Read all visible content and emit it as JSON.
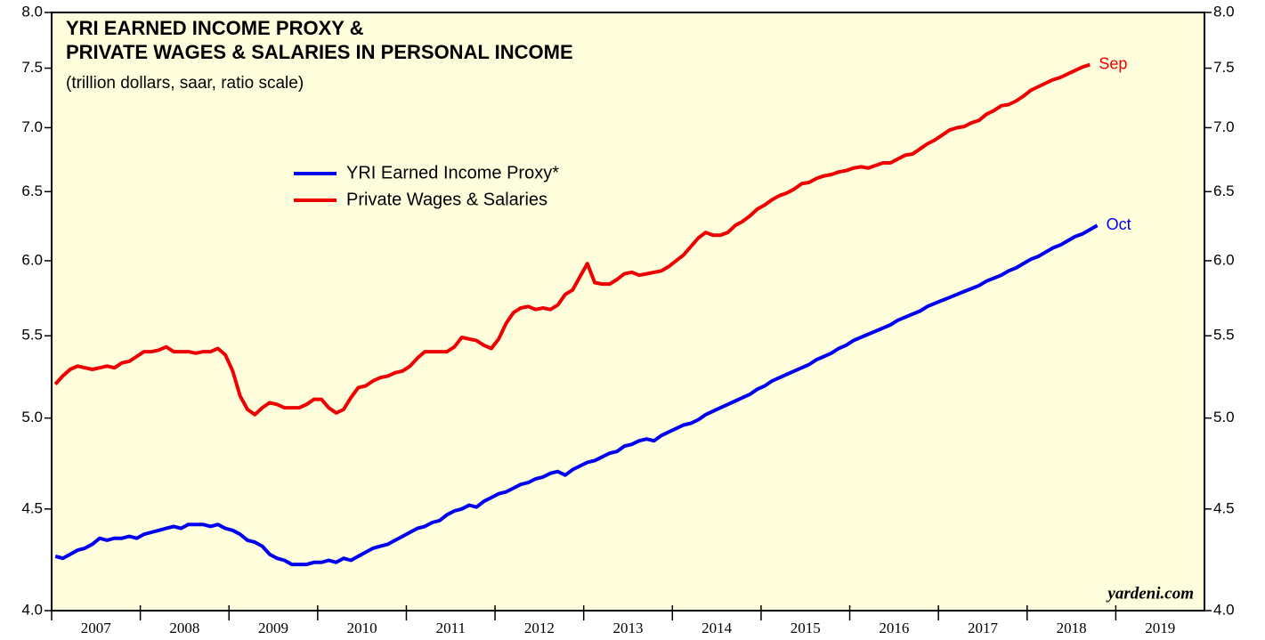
{
  "chart_data": {
    "type": "line",
    "title": "YRI EARNED INCOME PROXY &",
    "title_line2": "PRIVATE WAGES & SALARIES IN PERSONAL INCOME",
    "subtitle": "(trillion dollars, saar, ratio scale)",
    "source": "yardeni.com",
    "log_scale": true,
    "grid": false,
    "legend": "upper-left",
    "categories": [
      "2007",
      "2008",
      "2009",
      "2010",
      "2011",
      "2012",
      "2013",
      "2014",
      "2015",
      "2016",
      "2017",
      "2018",
      "2019"
    ],
    "x": [
      "2007-01",
      "2007-02",
      "2007-03",
      "2007-04",
      "2007-05",
      "2007-06",
      "2007-07",
      "2007-08",
      "2007-09",
      "2007-10",
      "2007-11",
      "2007-12",
      "2008-01",
      "2008-02",
      "2008-03",
      "2008-04",
      "2008-05",
      "2008-06",
      "2008-07",
      "2008-08",
      "2008-09",
      "2008-10",
      "2008-11",
      "2008-12",
      "2009-01",
      "2009-02",
      "2009-03",
      "2009-04",
      "2009-05",
      "2009-06",
      "2009-07",
      "2009-08",
      "2009-09",
      "2009-10",
      "2009-11",
      "2009-12",
      "2010-01",
      "2010-02",
      "2010-03",
      "2010-04",
      "2010-05",
      "2010-06",
      "2010-07",
      "2010-08",
      "2010-09",
      "2010-10",
      "2010-11",
      "2010-12",
      "2011-01",
      "2011-02",
      "2011-03",
      "2011-04",
      "2011-05",
      "2011-06",
      "2011-07",
      "2011-08",
      "2011-09",
      "2011-10",
      "2011-11",
      "2011-12",
      "2012-01",
      "2012-02",
      "2012-03",
      "2012-04",
      "2012-05",
      "2012-06",
      "2012-07",
      "2012-08",
      "2012-09",
      "2012-10",
      "2012-11",
      "2012-12",
      "2013-01",
      "2013-02",
      "2013-03",
      "2013-04",
      "2013-05",
      "2013-06",
      "2013-07",
      "2013-08",
      "2013-09",
      "2013-10",
      "2013-11",
      "2013-12",
      "2014-01",
      "2014-02",
      "2014-03",
      "2014-04",
      "2014-05",
      "2014-06",
      "2014-07",
      "2014-08",
      "2014-09",
      "2014-10",
      "2014-11",
      "2014-12",
      "2015-01",
      "2015-02",
      "2015-03",
      "2015-04",
      "2015-05",
      "2015-06",
      "2015-07",
      "2015-08",
      "2015-09",
      "2015-10",
      "2015-11",
      "2015-12",
      "2016-01",
      "2016-02",
      "2016-03",
      "2016-04",
      "2016-05",
      "2016-06",
      "2016-07",
      "2016-08",
      "2016-09",
      "2016-10",
      "2016-11",
      "2016-12",
      "2017-01",
      "2017-02",
      "2017-03",
      "2017-04",
      "2017-05",
      "2017-06",
      "2017-07",
      "2017-08",
      "2017-09",
      "2017-10",
      "2017-11",
      "2017-12",
      "2018-01",
      "2018-02",
      "2018-03",
      "2018-04",
      "2018-05",
      "2018-06",
      "2018-07",
      "2018-08",
      "2018-09",
      "2018-10"
    ],
    "series": [
      {
        "name": "YRI Earned Income Proxy*",
        "color": "#0000ee",
        "end_label": "Oct",
        "values": [
          4.26,
          4.25,
          4.27,
          4.29,
          4.3,
          4.32,
          4.35,
          4.34,
          4.35,
          4.35,
          4.36,
          4.35,
          4.37,
          4.38,
          4.39,
          4.4,
          4.41,
          4.4,
          4.42,
          4.42,
          4.42,
          4.41,
          4.42,
          4.4,
          4.39,
          4.37,
          4.34,
          4.33,
          4.31,
          4.27,
          4.25,
          4.24,
          4.22,
          4.22,
          4.22,
          4.23,
          4.23,
          4.24,
          4.23,
          4.25,
          4.24,
          4.26,
          4.28,
          4.3,
          4.31,
          4.32,
          4.34,
          4.36,
          4.38,
          4.4,
          4.41,
          4.43,
          4.44,
          4.47,
          4.49,
          4.5,
          4.52,
          4.51,
          4.54,
          4.56,
          4.58,
          4.59,
          4.61,
          4.63,
          4.64,
          4.66,
          4.67,
          4.69,
          4.7,
          4.68,
          4.71,
          4.73,
          4.75,
          4.76,
          4.78,
          4.8,
          4.81,
          4.84,
          4.85,
          4.87,
          4.88,
          4.87,
          4.9,
          4.92,
          4.94,
          4.96,
          4.97,
          4.99,
          5.02,
          5.04,
          5.06,
          5.08,
          5.1,
          5.12,
          5.14,
          5.17,
          5.19,
          5.22,
          5.24,
          5.26,
          5.28,
          5.3,
          5.32,
          5.35,
          5.37,
          5.39,
          5.42,
          5.44,
          5.47,
          5.49,
          5.51,
          5.53,
          5.55,
          5.57,
          5.6,
          5.62,
          5.64,
          5.66,
          5.69,
          5.71,
          5.73,
          5.75,
          5.77,
          5.79,
          5.81,
          5.83,
          5.86,
          5.88,
          5.9,
          5.93,
          5.95,
          5.98,
          6.01,
          6.03,
          6.06,
          6.09,
          6.11,
          6.14,
          6.17,
          6.19,
          6.22,
          6.25
        ]
      },
      {
        "name": "Private Wages & Salaries",
        "color": "#ee0000",
        "end_label": "Sep",
        "values": [
          5.2,
          5.25,
          5.29,
          5.31,
          5.3,
          5.29,
          5.3,
          5.31,
          5.3,
          5.33,
          5.34,
          5.37,
          5.4,
          5.4,
          5.41,
          5.43,
          5.4,
          5.4,
          5.4,
          5.39,
          5.4,
          5.4,
          5.42,
          5.38,
          5.28,
          5.13,
          5.05,
          5.02,
          5.06,
          5.09,
          5.08,
          5.06,
          5.06,
          5.06,
          5.08,
          5.11,
          5.11,
          5.06,
          5.03,
          5.05,
          5.12,
          5.18,
          5.19,
          5.22,
          5.24,
          5.25,
          5.27,
          5.28,
          5.31,
          5.36,
          5.4,
          5.4,
          5.4,
          5.4,
          5.43,
          5.49,
          5.48,
          5.47,
          5.44,
          5.42,
          5.48,
          5.58,
          5.65,
          5.68,
          5.69,
          5.67,
          5.68,
          5.67,
          5.7,
          5.77,
          5.8,
          5.89,
          5.98,
          5.85,
          5.84,
          5.84,
          5.87,
          5.91,
          5.92,
          5.9,
          5.91,
          5.92,
          5.93,
          5.96,
          6.0,
          6.04,
          6.1,
          6.16,
          6.2,
          6.18,
          6.18,
          6.2,
          6.25,
          6.28,
          6.32,
          6.37,
          6.4,
          6.44,
          6.47,
          6.49,
          6.52,
          6.56,
          6.57,
          6.6,
          6.62,
          6.63,
          6.65,
          6.66,
          6.68,
          6.69,
          6.68,
          6.7,
          6.72,
          6.72,
          6.75,
          6.78,
          6.79,
          6.83,
          6.87,
          6.9,
          6.94,
          6.98,
          7.0,
          7.01,
          7.04,
          7.06,
          7.11,
          7.14,
          7.18,
          7.19,
          7.22,
          7.26,
          7.31,
          7.34,
          7.37,
          7.4,
          7.42,
          7.45,
          7.48,
          7.51,
          7.53,
          null
        ]
      }
    ],
    "ylim": [
      4,
      8
    ],
    "yticks": [
      {
        "value": 4,
        "label": "4.0"
      },
      {
        "value": 4.5,
        "label": "4.5"
      },
      {
        "value": 5,
        "label": "5.0"
      },
      {
        "value": 5.5,
        "label": "5.5"
      },
      {
        "value": 6,
        "label": "6.0"
      },
      {
        "value": 6.5,
        "label": "6.5"
      },
      {
        "value": 7,
        "label": "7.0"
      },
      {
        "value": 7.5,
        "label": "7.5"
      },
      {
        "value": 8,
        "label": "8.0"
      }
    ]
  }
}
